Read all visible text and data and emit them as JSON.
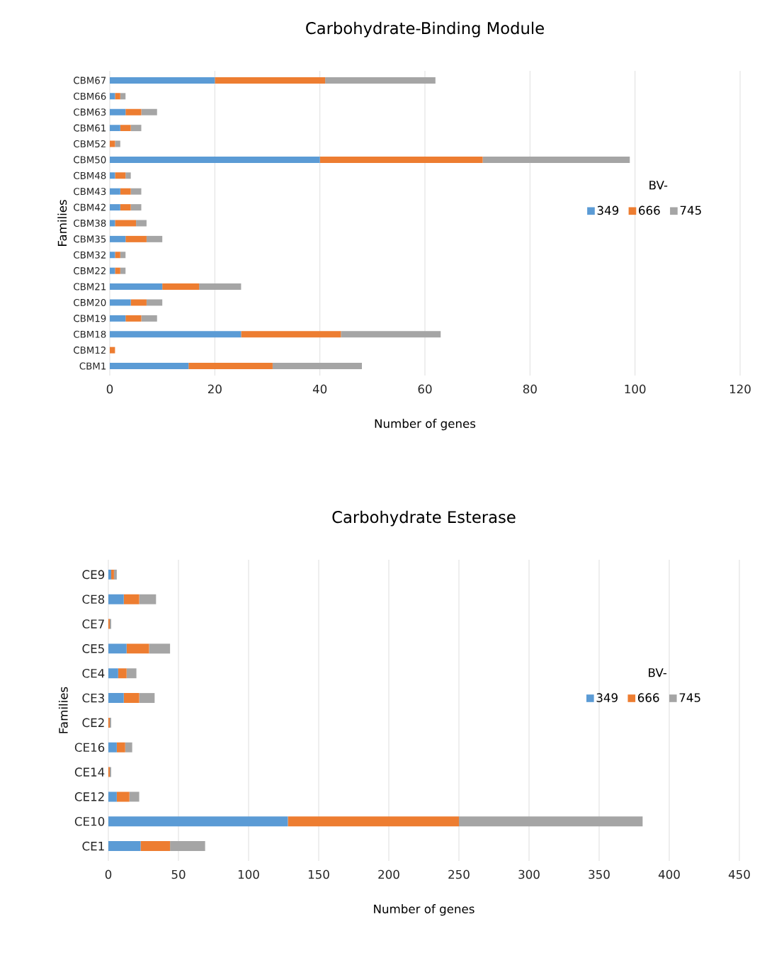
{
  "chart_data": [
    {
      "type": "bar",
      "orientation": "horizontal",
      "stacked": true,
      "title": "Carbohydrate-Binding Module",
      "xlabel": "Number of genes",
      "ylabel": "Families",
      "legend_title": "BV-",
      "categories": [
        "CBM67",
        "CBM66",
        "CBM63",
        "CBM61",
        "CBM52",
        "CBM50",
        "CBM48",
        "CBM43",
        "CBM42",
        "CBM38",
        "CBM35",
        "CBM32",
        "CBM22",
        "CBM21",
        "CBM20",
        "CBM19",
        "CBM18",
        "CBM12",
        "CBM1"
      ],
      "series": [
        {
          "name": "349",
          "color": "#5b9bd5",
          "values": [
            20,
            1,
            3,
            2,
            0,
            40,
            1,
            2,
            2,
            1,
            3,
            1,
            1,
            10,
            4,
            3,
            25,
            0,
            15
          ]
        },
        {
          "name": "666",
          "color": "#ed7d31",
          "values": [
            21,
            1,
            3,
            2,
            1,
            31,
            2,
            2,
            2,
            4,
            4,
            1,
            1,
            7,
            3,
            3,
            19,
            1,
            16
          ]
        },
        {
          "name": "745",
          "color": "#a5a5a5",
          "values": [
            21,
            1,
            3,
            2,
            1,
            28,
            1,
            2,
            2,
            2,
            3,
            1,
            1,
            8,
            3,
            3,
            19,
            0,
            17
          ]
        }
      ],
      "xlim": [
        0,
        120
      ],
      "xticks": [
        0,
        20,
        40,
        60,
        80,
        100,
        120
      ],
      "grid": "x",
      "legend": "right"
    },
    {
      "type": "bar",
      "orientation": "horizontal",
      "stacked": true,
      "title": "Carbohydrate Esterase",
      "xlabel": "Number of genes",
      "ylabel": "Families",
      "legend_title": "BV-",
      "categories": [
        "CE9",
        "CE8",
        "CE7",
        "CE5",
        "CE4",
        "CE3",
        "CE2",
        "CE16",
        "CE14",
        "CE12",
        "CE10",
        "CE1"
      ],
      "series": [
        {
          "name": "349",
          "color": "#5b9bd5",
          "values": [
            2,
            11,
            0,
            13,
            7,
            11,
            0,
            6,
            0,
            6,
            128,
            23
          ]
        },
        {
          "name": "666",
          "color": "#ed7d31",
          "values": [
            2,
            11,
            1,
            16,
            6,
            11,
            1,
            6,
            1,
            9,
            122,
            21
          ]
        },
        {
          "name": "745",
          "color": "#a5a5a5",
          "values": [
            2,
            12,
            1,
            15,
            7,
            11,
            1,
            5,
            1,
            7,
            131,
            25
          ]
        }
      ],
      "xlim": [
        0,
        450
      ],
      "xticks": [
        0,
        50,
        100,
        150,
        200,
        250,
        300,
        350,
        400,
        450
      ],
      "grid": "x",
      "legend": "right"
    }
  ]
}
